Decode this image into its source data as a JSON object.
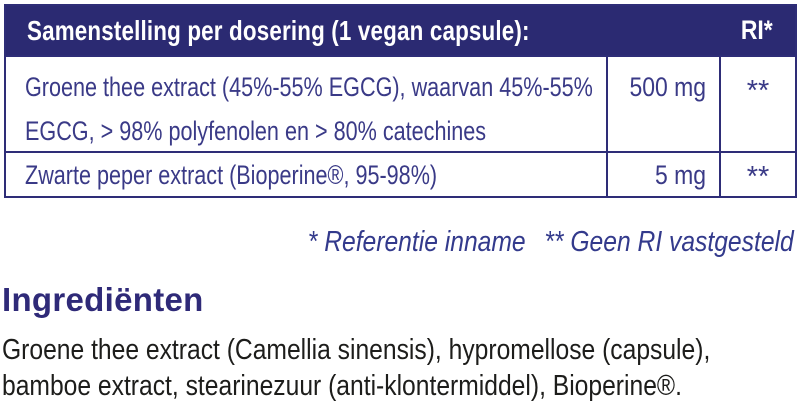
{
  "colors": {
    "header_bg": "#2b2a72",
    "border": "#2e2d77",
    "table_text": "#3a3a87",
    "footnote_text": "#333a8c",
    "heading_text": "#2f2a78",
    "body_text": "#1d1d1b"
  },
  "table": {
    "header": {
      "title": "Samenstelling per dosering (1 vegan capsule):",
      "ri_label": "RI*"
    },
    "rows": [
      {
        "name_lines": [
          "Groene thee extract (45%-55% EGCG), waarvan 45%-55%",
          "EGCG, > 98% polyfenolen en > 80% catechines"
        ],
        "amount": "500 mg",
        "ri": "**"
      },
      {
        "name_lines": [
          "Zwarte peper extract (Bioperine®, 95-98%)"
        ],
        "amount": "5 mg",
        "ri": "**"
      }
    ],
    "footnotes": [
      "* Referentie inname",
      "** Geen RI vastgesteld"
    ]
  },
  "ingredients": {
    "heading": "Ingrediënten",
    "text": "Groene thee extract (Camellia sinensis), hypromellose (capsule), bamboe extract, stearinezuur (anti-klontermiddel), Bioperine®."
  }
}
